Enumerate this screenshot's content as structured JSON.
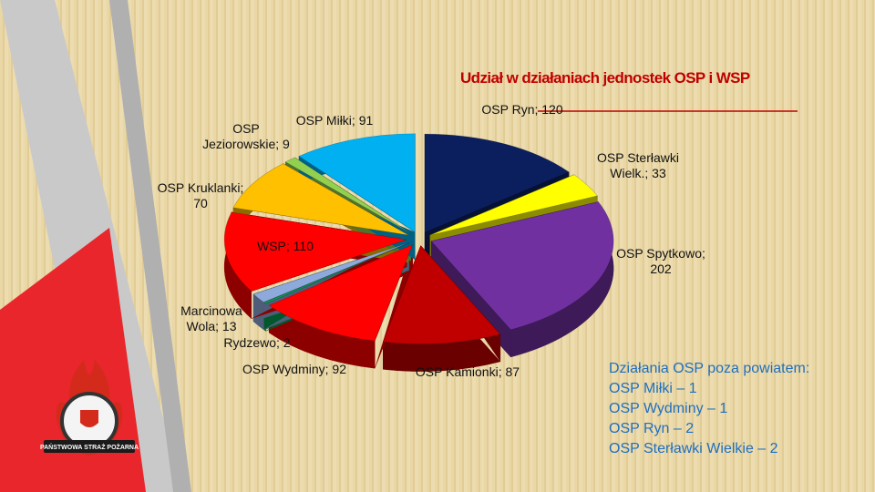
{
  "chart_data": {
    "type": "pie3d",
    "title": "Udział w działaniach jednostek OSP i WSP",
    "values": [
      120,
      33,
      202,
      87,
      92,
      2,
      13,
      110,
      70,
      9,
      91
    ],
    "value_labels": [
      "OSP Ryn; 120",
      "OSP Sterławki Wielk.; 33",
      "OSP Spytkowo; 202",
      "OSP Kamionki; 87",
      "OSP Wydminy; 92",
      "Rydzewo; 2",
      "Marcinowa Wola; 13",
      "WSP; 110",
      "OSP Kruklanki; 70",
      "OSP Jeziorowskie; 9",
      "OSP Miłki; 91"
    ],
    "colors": [
      "#0b1f5e",
      "#ffff00",
      "#7030a0",
      "#c00000",
      "#ff0000",
      "#00a050",
      "#8ea9db",
      "#ff0000",
      "#ffc000",
      "#92d050",
      "#00b0f0"
    ]
  },
  "note_box": {
    "heading": "Działania OSP poza powiatem:",
    "lines": [
      "OSP Miłki – 1",
      "OSP Wydminy – 1",
      "OSP Ryn – 2",
      "OSP Sterławki Wielkie – 2"
    ]
  },
  "logo": {
    "text": "PAŃSTWOWA STRAŻ POŻARNA"
  }
}
